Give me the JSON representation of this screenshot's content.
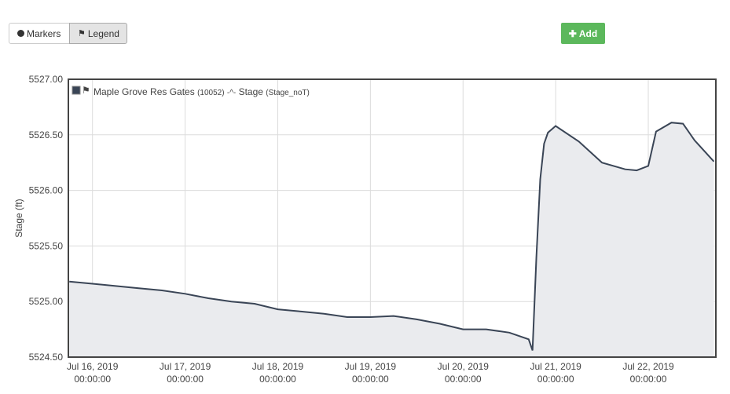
{
  "toolbar": {
    "markers": "Markers",
    "legend": "Legend",
    "add": "Add"
  },
  "chart_data": {
    "type": "area",
    "legend_name": "Maple Grove Res Gates",
    "legend_id": "(10052)",
    "legend_series": "Stage",
    "legend_series_id": "(Stage_noT)",
    "y_label": "Stage (ft)",
    "color": "#3a4556",
    "fill": "#eaebee",
    "grid": true,
    "x": [
      "2019-07-15T18:00",
      "2019-07-16T00:00",
      "2019-07-16T06:00",
      "2019-07-16T12:00",
      "2019-07-16T18:00",
      "2019-07-17T00:00",
      "2019-07-17T06:00",
      "2019-07-17T12:00",
      "2019-07-17T18:00",
      "2019-07-18T00:00",
      "2019-07-18T06:00",
      "2019-07-18T12:00",
      "2019-07-18T18:00",
      "2019-07-19T00:00",
      "2019-07-19T06:00",
      "2019-07-19T12:00",
      "2019-07-19T18:00",
      "2019-07-20T00:00",
      "2019-07-20T06:00",
      "2019-07-20T12:00",
      "2019-07-20T17:00",
      "2019-07-20T18:00",
      "2019-07-20T19:00",
      "2019-07-20T20:00",
      "2019-07-20T21:00",
      "2019-07-20T22:00",
      "2019-07-21T00:00",
      "2019-07-21T06:00",
      "2019-07-21T12:00",
      "2019-07-21T18:00",
      "2019-07-21T21:00",
      "2019-07-22T00:00",
      "2019-07-22T02:00",
      "2019-07-22T06:00",
      "2019-07-22T09:00",
      "2019-07-22T12:00",
      "2019-07-22T17:00"
    ],
    "values": [
      5525.18,
      5525.16,
      5525.14,
      5525.12,
      5525.1,
      5525.07,
      5525.03,
      5525.0,
      5524.98,
      5524.93,
      5524.91,
      5524.89,
      5524.86,
      5524.86,
      5524.87,
      5524.84,
      5524.8,
      5524.75,
      5524.75,
      5524.72,
      5524.66,
      5524.56,
      5525.4,
      5526.1,
      5526.42,
      5526.52,
      5526.58,
      5526.44,
      5526.25,
      5526.19,
      5526.18,
      5526.22,
      5526.53,
      5526.61,
      5526.6,
      5526.45,
      5526.26
    ],
    "xlim": [
      "2019-07-15T17:45",
      "2019-07-22T17:30"
    ],
    "xticks": [
      {
        "value": "2019-07-16T00:00",
        "label": "Jul 16, 2019",
        "time": "00:00:00"
      },
      {
        "value": "2019-07-17T00:00",
        "label": "Jul 17, 2019",
        "time": "00:00:00"
      },
      {
        "value": "2019-07-18T00:00",
        "label": "Jul 18, 2019",
        "time": "00:00:00"
      },
      {
        "value": "2019-07-19T00:00",
        "label": "Jul 19, 2019",
        "time": "00:00:00"
      },
      {
        "value": "2019-07-20T00:00",
        "label": "Jul 20, 2019",
        "time": "00:00:00"
      },
      {
        "value": "2019-07-21T00:00",
        "label": "Jul 21, 2019",
        "time": "00:00:00"
      },
      {
        "value": "2019-07-22T00:00",
        "label": "Jul 22, 2019",
        "time": "00:00:00"
      }
    ],
    "ylim": [
      5524.5,
      5527.0
    ],
    "yticks": [
      {
        "value": 5524.5,
        "label": "5524.50"
      },
      {
        "value": 5525.0,
        "label": "5525.00"
      },
      {
        "value": 5525.5,
        "label": "5525.50"
      },
      {
        "value": 5526.0,
        "label": "5526.00"
      },
      {
        "value": 5526.5,
        "label": "5526.50"
      },
      {
        "value": 5527.0,
        "label": "5527.00"
      }
    ]
  }
}
